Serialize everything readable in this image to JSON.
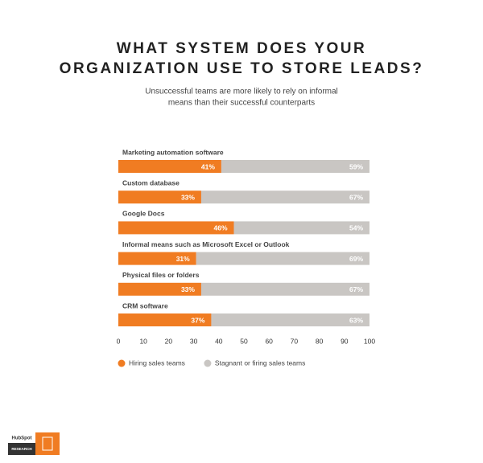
{
  "chart_data": {
    "type": "stacked-barh",
    "title": [
      "WHAT SYSTEM DOES YOUR",
      "ORGANIZATION USE TO STORE LEADS?"
    ],
    "subtitle": [
      "Unsuccessful teams are more likely to rely on informal",
      "means than their successful counterparts"
    ],
    "categories": [
      "Marketing automation software",
      "Custom database",
      "Google Docs",
      "Informal means such as Microsoft Excel or Outlook",
      "Physical files or folders",
      "CRM software"
    ],
    "series": [
      {
        "name": "Hiring sales teams",
        "color": "#f07c22",
        "values": [
          41,
          33,
          46,
          31,
          33,
          37
        ],
        "value_labels": [
          "41%",
          "33%",
          "46%",
          "31%",
          "33%",
          "37%"
        ]
      },
      {
        "name": "Stagnant or firing sales teams",
        "color": "#c9c6c3",
        "values": [
          59,
          67,
          54,
          69,
          67,
          63
        ],
        "value_labels": [
          "59%",
          "67%",
          "54%",
          "69%",
          "67%",
          "63%"
        ]
      }
    ],
    "xlim": [
      0,
      100
    ],
    "xticks": [
      0,
      10,
      20,
      30,
      40,
      50,
      60,
      70,
      80,
      90,
      100
    ],
    "grid": false,
    "legend": "bottom-left"
  },
  "logo": {
    "brand": "HubSpot",
    "label": "RESEARCH"
  }
}
